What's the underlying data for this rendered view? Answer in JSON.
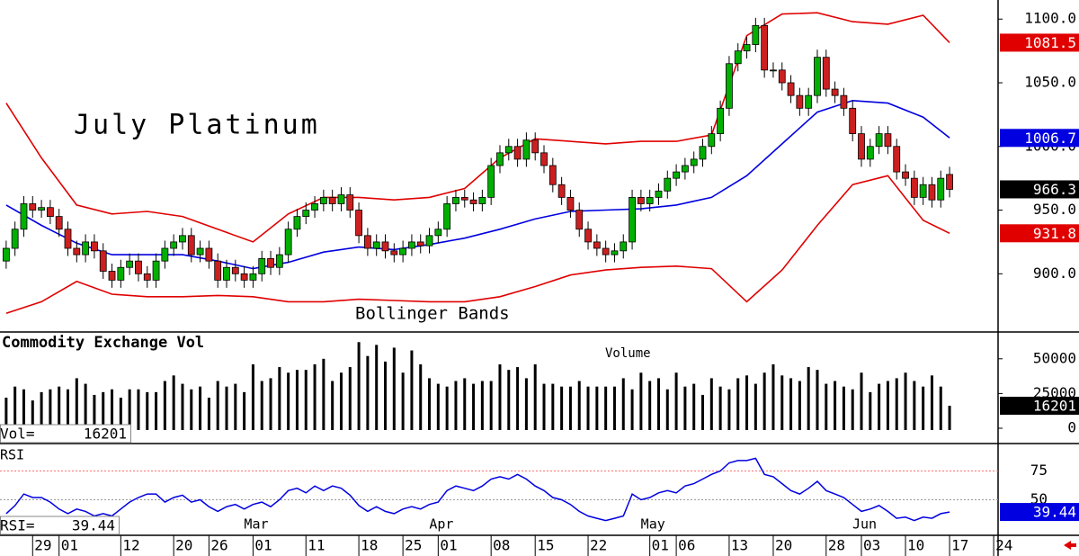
{
  "chart_data": [
    {
      "type": "candlestick",
      "title": "July Platinum",
      "annotation": "Bollinger Bands",
      "up_color": "#00b000",
      "down_color": "#cc2020",
      "close_box_color": "#000000",
      "xlim": [
        -0.7,
        112.5
      ],
      "ylim": [
        855,
        1115
      ],
      "yticks": [
        {
          "value": 900,
          "label": "900.0"
        },
        {
          "value": 950,
          "label": "950.0"
        },
        {
          "value": 1000,
          "label": "1000.0"
        },
        {
          "value": 1050,
          "label": "1050.0"
        },
        {
          "value": 1100,
          "label": "1100.0"
        }
      ],
      "open": [
        910,
        920,
        935,
        955,
        950,
        952,
        945,
        935,
        920,
        915,
        925,
        918,
        902,
        895,
        905,
        910,
        900,
        895,
        910,
        920,
        925,
        930,
        915,
        920,
        910,
        895,
        905,
        900,
        895,
        900,
        912,
        905,
        915,
        935,
        945,
        950,
        955,
        960,
        955,
        962,
        950,
        930,
        920,
        925,
        918,
        915,
        920,
        925,
        922,
        930,
        935,
        955,
        960,
        958,
        955,
        960,
        985,
        995,
        1000,
        990,
        1005,
        995,
        985,
        970,
        960,
        950,
        935,
        925,
        920,
        915,
        918,
        925,
        960,
        955,
        960,
        965,
        975,
        980,
        985,
        990,
        1000,
        1010,
        1030,
        1065,
        1075,
        1080,
        1095,
        1060,
        1060,
        1050,
        1040,
        1030,
        1040,
        1070,
        1045,
        1040,
        1030,
        1010,
        990,
        1000,
        1010,
        1000,
        980,
        975,
        960,
        970,
        958,
        978
      ],
      "high": [
        926,
        941,
        961,
        961,
        958,
        958,
        951,
        941,
        926,
        931,
        931,
        924,
        908,
        911,
        916,
        916,
        906,
        916,
        926,
        931,
        936,
        936,
        926,
        926,
        916,
        911,
        911,
        906,
        906,
        918,
        918,
        921,
        941,
        951,
        956,
        961,
        966,
        966,
        968,
        968,
        956,
        936,
        931,
        931,
        924,
        926,
        931,
        931,
        936,
        941,
        961,
        966,
        966,
        964,
        966,
        991,
        1001,
        1006,
        1006,
        1011,
        1011,
        1001,
        991,
        976,
        966,
        956,
        941,
        931,
        926,
        924,
        931,
        966,
        966,
        966,
        971,
        981,
        986,
        991,
        996,
        1006,
        1016,
        1036,
        1071,
        1081,
        1086,
        1101,
        1101,
        1066,
        1066,
        1056,
        1046,
        1046,
        1076,
        1076,
        1051,
        1046,
        1036,
        1016,
        1006,
        1016,
        1016,
        1006,
        986,
        981,
        976,
        976,
        981,
        984
      ],
      "low": [
        904,
        914,
        929,
        944,
        944,
        939,
        929,
        914,
        909,
        909,
        912,
        896,
        889,
        889,
        899,
        894,
        889,
        889,
        904,
        914,
        919,
        909,
        909,
        904,
        889,
        889,
        894,
        889,
        889,
        894,
        899,
        899,
        909,
        929,
        939,
        944,
        949,
        949,
        949,
        944,
        924,
        914,
        914,
        912,
        909,
        909,
        914,
        916,
        916,
        924,
        929,
        949,
        952,
        949,
        949,
        954,
        979,
        989,
        984,
        984,
        989,
        979,
        964,
        954,
        944,
        929,
        919,
        914,
        909,
        909,
        912,
        919,
        949,
        949,
        954,
        959,
        969,
        974,
        979,
        984,
        994,
        1004,
        1024,
        1059,
        1069,
        1074,
        1054,
        1054,
        1044,
        1034,
        1024,
        1024,
        1034,
        1039,
        1034,
        1024,
        1004,
        984,
        984,
        994,
        994,
        974,
        969,
        954,
        954,
        952,
        952,
        960
      ],
      "close": [
        920,
        935,
        955,
        950,
        952,
        945,
        935,
        920,
        915,
        925,
        918,
        902,
        895,
        905,
        910,
        900,
        895,
        910,
        920,
        925,
        930,
        915,
        920,
        910,
        895,
        905,
        900,
        895,
        900,
        912,
        905,
        915,
        935,
        945,
        950,
        955,
        960,
        955,
        962,
        950,
        930,
        920,
        925,
        918,
        915,
        920,
        925,
        922,
        930,
        935,
        955,
        960,
        958,
        955,
        960,
        985,
        995,
        1000,
        990,
        1005,
        995,
        985,
        970,
        960,
        950,
        935,
        925,
        920,
        915,
        918,
        925,
        960,
        955,
        960,
        965,
        975,
        980,
        985,
        990,
        1000,
        1010,
        1030,
        1065,
        1075,
        1080,
        1095,
        1060,
        1060,
        1050,
        1040,
        1030,
        1040,
        1070,
        1045,
        1040,
        1030,
        1010,
        990,
        1000,
        1010,
        1000,
        980,
        975,
        960,
        970,
        958,
        975,
        966.3
      ],
      "band_x": [
        0,
        4,
        8,
        12,
        16,
        20,
        24,
        28,
        32,
        36,
        40,
        44,
        48,
        52,
        56,
        60,
        64,
        68,
        72,
        76,
        80,
        84,
        88,
        92,
        96,
        100,
        104,
        107
      ],
      "bands": [
        {
          "color": "#e00000",
          "values": [
            1034,
            991,
            954,
            947,
            949,
            945,
            935,
            925,
            947,
            960,
            960,
            958,
            960,
            967,
            991,
            1006,
            1004,
            1002,
            1004,
            1004,
            1009,
            1087,
            1104,
            1105,
            1098,
            1096,
            1103,
            1081.5
          ]
        },
        {
          "color": "#0000e0",
          "values": [
            954,
            938,
            924,
            915,
            915,
            915,
            910,
            904,
            909,
            917,
            921,
            919,
            923,
            928,
            935,
            943,
            949,
            950,
            951,
            954,
            960,
            977,
            1002,
            1027,
            1036,
            1034,
            1023,
            1006.7
          ]
        },
        {
          "color": "#e00000",
          "values": [
            869,
            878,
            894,
            884,
            882,
            882,
            883,
            882,
            878,
            878,
            880,
            879,
            878,
            878,
            882,
            890,
            899,
            903,
            905,
            906,
            904,
            878,
            903,
            938,
            970,
            977,
            942,
            931.8
          ]
        }
      ]
    },
    {
      "type": "bar",
      "title": "Commodity Exchange Vol",
      "subtitle": "Volume",
      "value_label": "Vol=",
      "color": "#000000",
      "xlim": [
        -0.7,
        112.5
      ],
      "ylim": [
        0,
        68000
      ],
      "yticks": [
        0,
        25000,
        50000
      ],
      "values": [
        22000,
        30000,
        28000,
        20000,
        26000,
        28000,
        30000,
        28000,
        36000,
        32000,
        24000,
        26000,
        28000,
        22000,
        28000,
        28000,
        26000,
        26000,
        34000,
        38000,
        32000,
        28000,
        30000,
        22000,
        34000,
        30000,
        32000,
        26000,
        46000,
        34000,
        36000,
        44000,
        40000,
        42000,
        42000,
        46000,
        50000,
        34000,
        40000,
        44000,
        62000,
        52000,
        60000,
        48000,
        58000,
        40000,
        56000,
        46000,
        36000,
        32000,
        30000,
        34000,
        36000,
        32000,
        34000,
        34000,
        46000,
        42000,
        44000,
        36000,
        46000,
        32000,
        32000,
        30000,
        30000,
        34000,
        30000,
        30000,
        30000,
        30000,
        36000,
        28000,
        40000,
        34000,
        36000,
        28000,
        40000,
        30000,
        32000,
        24000,
        36000,
        30000,
        28000,
        36000,
        38000,
        32000,
        40000,
        46000,
        38000,
        36000,
        34000,
        44000,
        42000,
        32000,
        34000,
        30000,
        28000,
        40000,
        26000,
        32000,
        34000,
        36000,
        40000,
        34000,
        30000,
        38000,
        30000,
        16201
      ]
    },
    {
      "type": "line",
      "title": "RSI",
      "value_label": "RSI=",
      "color": "#0000e0",
      "xlim": [
        -0.7,
        112.5
      ],
      "ylim": [
        20,
        98
      ],
      "yticks": [
        75,
        50
      ],
      "values": [
        38,
        45,
        55,
        52,
        52,
        48,
        42,
        38,
        42,
        40,
        36,
        38,
        36,
        42,
        48,
        52,
        55,
        55,
        48,
        52,
        54,
        48,
        50,
        44,
        40,
        44,
        46,
        42,
        46,
        48,
        44,
        50,
        58,
        60,
        56,
        62,
        58,
        62,
        60,
        54,
        45,
        40,
        44,
        40,
        38,
        42,
        44,
        42,
        46,
        48,
        58,
        62,
        60,
        58,
        62,
        68,
        70,
        68,
        72,
        68,
        62,
        58,
        52,
        50,
        46,
        40,
        36,
        34,
        32,
        34,
        36,
        55,
        50,
        52,
        56,
        58,
        56,
        62,
        64,
        68,
        72,
        75,
        82,
        84,
        84,
        86,
        72,
        70,
        64,
        58,
        55,
        60,
        66,
        58,
        55,
        52,
        46,
        40,
        42,
        45,
        40,
        34,
        35,
        32,
        35,
        34,
        38,
        39.44
      ],
      "xticks": [
        {
          "value": 3,
          "label": "29"
        },
        {
          "value": 6,
          "label": "01"
        },
        {
          "value": 13,
          "label": "12"
        },
        {
          "value": 19,
          "label": "20"
        },
        {
          "value": 23,
          "label": "26"
        },
        {
          "value": 28,
          "label": "01"
        },
        {
          "value": 34,
          "label": "11"
        },
        {
          "value": 40,
          "label": "18"
        },
        {
          "value": 45,
          "label": "25"
        },
        {
          "value": 49,
          "label": "01"
        },
        {
          "value": 55,
          "label": "08"
        },
        {
          "value": 60,
          "label": "15"
        },
        {
          "value": 66,
          "label": "22"
        },
        {
          "value": 73,
          "label": "01"
        },
        {
          "value": 76,
          "label": "06"
        },
        {
          "value": 82,
          "label": "13"
        },
        {
          "value": 87,
          "label": "20"
        },
        {
          "value": 93,
          "label": "28"
        },
        {
          "value": 97,
          "label": "03"
        },
        {
          "value": 102,
          "label": "10"
        },
        {
          "value": 107,
          "label": "17"
        },
        {
          "value": 112,
          "label": "24"
        }
      ],
      "months": [
        {
          "value": 28,
          "label": "Mar"
        },
        {
          "value": 49,
          "label": "Apr"
        },
        {
          "value": 73,
          "label": "May"
        },
        {
          "value": 97,
          "label": "Jun"
        }
      ]
    }
  ]
}
